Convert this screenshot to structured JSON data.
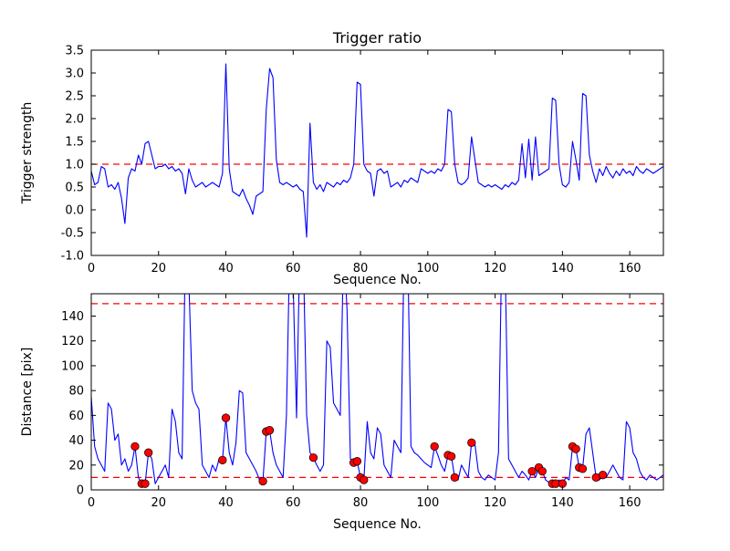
{
  "figure": {
    "background": "#ffffff"
  },
  "colors": {
    "series_line": "#0000ff",
    "threshold_line": "#ff0000",
    "marker_face": "#ff0000",
    "marker_edge": "#000000",
    "axes_frame": "#000000"
  },
  "chart_data": [
    {
      "type": "line",
      "title": "Trigger ratio",
      "xlabel": "Sequence No.",
      "ylabel": "Trigger strength",
      "xlim": [
        0,
        170
      ],
      "ylim": [
        -1.0,
        3.5
      ],
      "xticks": [
        0,
        20,
        40,
        60,
        80,
        100,
        120,
        140,
        160
      ],
      "yticks": [
        -1.0,
        -0.5,
        0.0,
        0.5,
        1.0,
        1.5,
        2.0,
        2.5,
        3.0,
        3.5
      ],
      "ytick_decimals": 1,
      "grid": false,
      "legend": "none",
      "threshold_lines": [
        1.0
      ],
      "x_start": 0,
      "x_step": 1,
      "values": [
        0.85,
        0.55,
        0.6,
        0.95,
        0.9,
        0.5,
        0.55,
        0.45,
        0.6,
        0.25,
        -0.3,
        0.7,
        0.9,
        0.85,
        1.2,
        1.0,
        1.45,
        1.5,
        1.2,
        0.9,
        0.95,
        0.95,
        1.0,
        0.9,
        0.95,
        0.85,
        0.9,
        0.8,
        0.35,
        0.9,
        0.65,
        0.5,
        0.55,
        0.6,
        0.5,
        0.55,
        0.6,
        0.55,
        0.5,
        0.8,
        3.2,
        0.9,
        0.4,
        0.35,
        0.3,
        0.45,
        0.25,
        0.1,
        -0.1,
        0.3,
        0.35,
        0.4,
        2.2,
        3.1,
        2.9,
        1.1,
        0.6,
        0.55,
        0.6,
        0.55,
        0.5,
        0.55,
        0.45,
        0.4,
        -0.6,
        1.9,
        0.6,
        0.45,
        0.55,
        0.4,
        0.6,
        0.55,
        0.5,
        0.6,
        0.55,
        0.65,
        0.6,
        0.7,
        1.0,
        2.8,
        2.75,
        1.0,
        0.85,
        0.8,
        0.3,
        0.85,
        0.9,
        0.8,
        0.85,
        0.5,
        0.55,
        0.6,
        0.5,
        0.65,
        0.6,
        0.7,
        0.65,
        0.6,
        0.9,
        0.85,
        0.8,
        0.85,
        0.8,
        0.9,
        0.85,
        1.0,
        2.2,
        2.15,
        1.0,
        0.6,
        0.55,
        0.6,
        0.7,
        1.6,
        1.1,
        0.6,
        0.55,
        0.5,
        0.55,
        0.5,
        0.55,
        0.5,
        0.45,
        0.55,
        0.5,
        0.6,
        0.55,
        0.65,
        1.45,
        0.7,
        1.55,
        0.65,
        1.6,
        0.75,
        0.8,
        0.85,
        0.9,
        2.45,
        2.4,
        1.0,
        0.55,
        0.5,
        0.6,
        1.5,
        1.1,
        0.65,
        2.55,
        2.5,
        1.2,
        0.85,
        0.6,
        0.9,
        0.75,
        0.95,
        0.8,
        0.7,
        0.85,
        0.75,
        0.9,
        0.8,
        0.85,
        0.75,
        0.95,
        0.85,
        0.8,
        0.9,
        0.85,
        0.8,
        0.85,
        0.9,
        0.95
      ]
    },
    {
      "type": "line",
      "title": "",
      "xlabel": "Sequence No.",
      "ylabel": "Distance [pix]",
      "xlim": [
        0,
        170
      ],
      "ylim": [
        0,
        158
      ],
      "xticks": [
        0,
        20,
        40,
        60,
        80,
        100,
        120,
        140,
        160
      ],
      "yticks": [
        0,
        20,
        40,
        60,
        80,
        100,
        120,
        140
      ],
      "ytick_decimals": 0,
      "grid": false,
      "legend": "none",
      "threshold_lines": [
        150,
        10
      ],
      "x_start": 0,
      "x_step": 1,
      "values": [
        75,
        35,
        25,
        20,
        15,
        70,
        65,
        40,
        45,
        20,
        25,
        15,
        20,
        35,
        10,
        5,
        5,
        30,
        25,
        5,
        10,
        15,
        20,
        10,
        65,
        55,
        30,
        25,
        200,
        168,
        80,
        70,
        65,
        20,
        15,
        10,
        20,
        15,
        25,
        24,
        58,
        30,
        20,
        38,
        80,
        78,
        30,
        25,
        20,
        15,
        8,
        7,
        47,
        48,
        30,
        20,
        15,
        10,
        60,
        200,
        165,
        58,
        200,
        190,
        60,
        30,
        26,
        20,
        15,
        20,
        120,
        115,
        70,
        65,
        60,
        200,
        145,
        25,
        22,
        23,
        10,
        8,
        55,
        30,
        25,
        50,
        45,
        20,
        15,
        10,
        40,
        35,
        30,
        200,
        200,
        35,
        30,
        28,
        25,
        22,
        20,
        18,
        35,
        28,
        20,
        15,
        28,
        27,
        10,
        8,
        20,
        15,
        10,
        38,
        37,
        15,
        10,
        8,
        12,
        10,
        8,
        30,
        200,
        180,
        25,
        20,
        15,
        10,
        15,
        12,
        8,
        15,
        10,
        18,
        15,
        8,
        6,
        5,
        5,
        8,
        5,
        10,
        8,
        35,
        33,
        18,
        17,
        45,
        50,
        30,
        10,
        8,
        12,
        10,
        15,
        20,
        15,
        10,
        8,
        55,
        50,
        30,
        25,
        15,
        10,
        8,
        12,
        10,
        8,
        10,
        12
      ],
      "markers": {
        "type": "scatter",
        "color": "#ff0000",
        "points": [
          [
            13,
            35
          ],
          [
            15,
            5
          ],
          [
            16,
            5
          ],
          [
            17,
            30
          ],
          [
            39,
            24
          ],
          [
            40,
            58
          ],
          [
            51,
            7
          ],
          [
            52,
            47
          ],
          [
            53,
            48
          ],
          [
            66,
            26
          ],
          [
            78,
            22
          ],
          [
            79,
            23
          ],
          [
            80,
            10
          ],
          [
            81,
            8
          ],
          [
            102,
            35
          ],
          [
            106,
            28
          ],
          [
            107,
            27
          ],
          [
            108,
            10
          ],
          [
            113,
            38
          ],
          [
            131,
            15
          ],
          [
            133,
            18
          ],
          [
            134,
            15
          ],
          [
            137,
            5
          ],
          [
            138,
            5
          ],
          [
            140,
            5
          ],
          [
            143,
            35
          ],
          [
            144,
            33
          ],
          [
            145,
            18
          ],
          [
            146,
            17
          ],
          [
            150,
            10
          ],
          [
            152,
            12
          ]
        ]
      }
    }
  ]
}
